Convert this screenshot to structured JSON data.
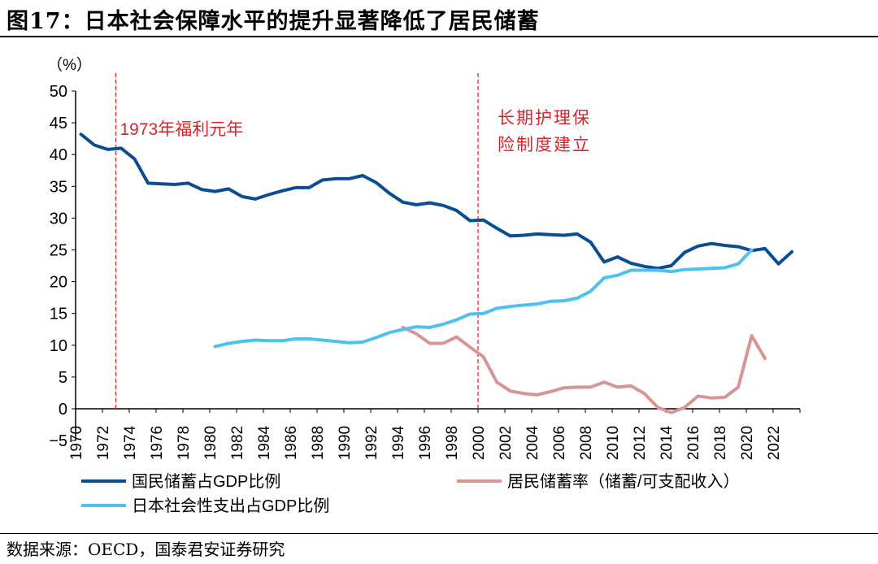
{
  "title": "图17：日本社会保障水平的提升显著降低了居民储蓄",
  "source": "数据来源：OECD，国泰君安证券研究",
  "chart_data": {
    "type": "line",
    "ylabel": "（%）",
    "ylim": [
      -5,
      50
    ],
    "yticks": [
      -5,
      0,
      5,
      10,
      15,
      20,
      25,
      30,
      35,
      40,
      45,
      50
    ],
    "xlim": [
      1970,
      2023
    ],
    "xticks": [
      1970,
      1972,
      1974,
      1976,
      1978,
      1980,
      1982,
      1984,
      1986,
      1988,
      1990,
      1992,
      1994,
      1996,
      1998,
      2000,
      2002,
      2004,
      2006,
      2008,
      2010,
      2012,
      2014,
      2016,
      2018,
      2020,
      2022
    ],
    "grid": false,
    "legend": "bottom",
    "annotations": [
      {
        "x": 1973,
        "label": "1973年福利元年",
        "color": "#e0262a"
      },
      {
        "x": 2000,
        "label_lines": [
          "长期护理保",
          "险制度建立"
        ],
        "color": "#e0262a"
      }
    ],
    "series": [
      {
        "name": "国民储蓄占GDP比例",
        "color": "#0a4d92",
        "x": [
          1970,
          1971,
          1972,
          1973,
          1974,
          1975,
          1976,
          1977,
          1978,
          1979,
          1980,
          1981,
          1982,
          1983,
          1984,
          1985,
          1986,
          1987,
          1988,
          1989,
          1990,
          1991,
          1992,
          1993,
          1994,
          1995,
          1996,
          1997,
          1998,
          1999,
          2000,
          2001,
          2002,
          2003,
          2004,
          2005,
          2006,
          2007,
          2008,
          2009,
          2010,
          2011,
          2012,
          2013,
          2014,
          2015,
          2016,
          2017,
          2018,
          2019,
          2020,
          2021,
          2022,
          2023
        ],
        "values": [
          43.2,
          41.5,
          40.8,
          41.0,
          39.3,
          35.5,
          35.4,
          35.3,
          35.5,
          34.5,
          34.2,
          34.6,
          33.4,
          33.0,
          33.7,
          34.3,
          34.8,
          34.8,
          36.0,
          36.2,
          36.2,
          36.7,
          35.6,
          33.9,
          32.5,
          32.1,
          32.4,
          32.0,
          31.2,
          29.6,
          29.7,
          28.4,
          27.2,
          27.3,
          27.5,
          27.4,
          27.3,
          27.5,
          26.2,
          23.1,
          23.9,
          22.9,
          22.4,
          22.1,
          22.5,
          24.6,
          25.6,
          26.0,
          25.7,
          25.5,
          24.9,
          25.2,
          22.8,
          24.7
        ]
      },
      {
        "name": "居民储蓄率（储蓄/可支配收入）",
        "color": "#d99593",
        "x": [
          1994,
          1995,
          1996,
          1997,
          1998,
          1999,
          2000,
          2001,
          2002,
          2003,
          2004,
          2005,
          2006,
          2007,
          2008,
          2009,
          2010,
          2011,
          2012,
          2013,
          2014,
          2015,
          2016,
          2017,
          2018,
          2019,
          2020,
          2021
        ],
        "values": [
          12.8,
          11.8,
          10.3,
          10.3,
          11.3,
          9.7,
          8.2,
          4.2,
          2.8,
          2.4,
          2.2,
          2.7,
          3.3,
          3.4,
          3.4,
          4.2,
          3.4,
          3.6,
          2.4,
          0.2,
          -0.6,
          0.2,
          2.0,
          1.7,
          1.8,
          3.4,
          11.5,
          7.9
        ]
      },
      {
        "name": "日本社会性支出占GDP比例",
        "color": "#4fc1ee",
        "x": [
          1980,
          1981,
          1982,
          1983,
          1984,
          1985,
          1986,
          1987,
          1988,
          1989,
          1990,
          1991,
          1992,
          1993,
          1994,
          1995,
          1996,
          1997,
          1998,
          1999,
          2000,
          2001,
          2002,
          2003,
          2004,
          2005,
          2006,
          2007,
          2008,
          2009,
          2010,
          2011,
          2012,
          2013,
          2014,
          2015,
          2016,
          2017,
          2018,
          2019,
          2020
        ],
        "values": [
          9.8,
          10.3,
          10.6,
          10.8,
          10.7,
          10.7,
          11.0,
          11.0,
          10.8,
          10.6,
          10.4,
          10.5,
          11.2,
          12.0,
          12.5,
          12.9,
          12.8,
          13.3,
          14.0,
          14.9,
          15.0,
          15.8,
          16.1,
          16.3,
          16.5,
          16.9,
          17.0,
          17.4,
          18.5,
          20.6,
          21.0,
          21.8,
          21.8,
          21.8,
          21.6,
          21.9,
          22.0,
          22.1,
          22.2,
          22.8,
          25.0
        ]
      }
    ]
  }
}
